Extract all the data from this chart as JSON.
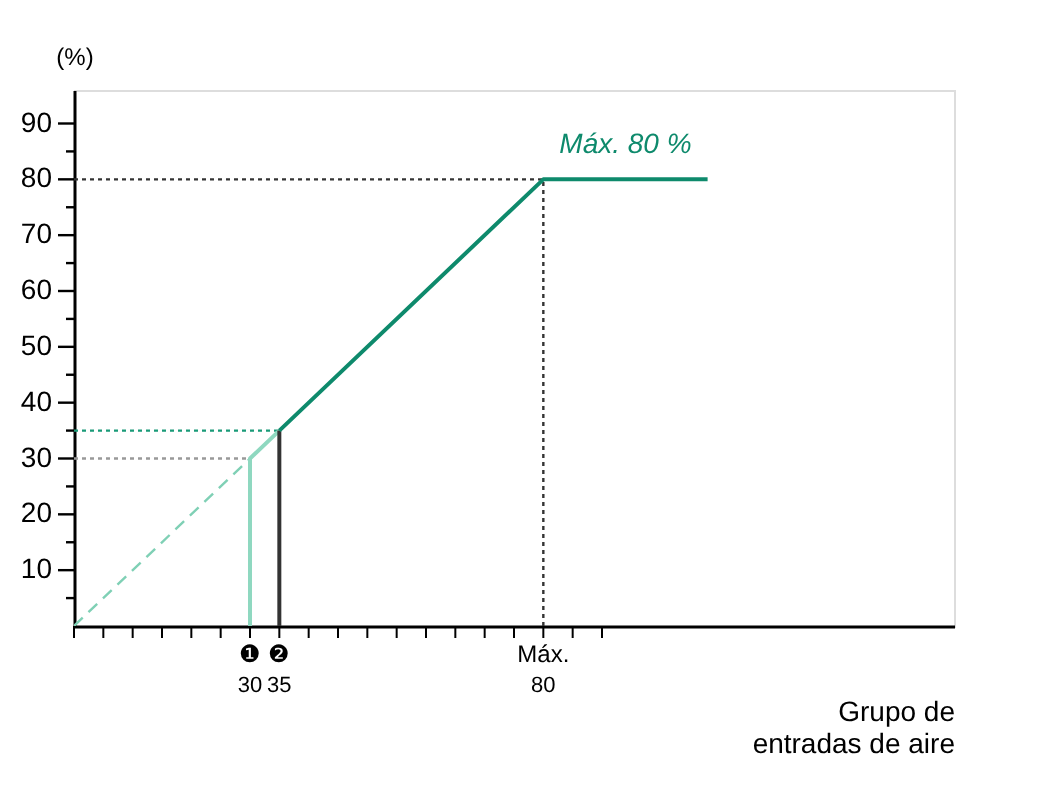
{
  "chart_data": {
    "type": "line",
    "ylabel": "(%)",
    "xlabel": "Grupo de\nentradas de aire",
    "xlim": [
      0,
      150
    ],
    "ylim": [
      0,
      96
    ],
    "xticks": [
      {
        "value": 0,
        "label": null
      },
      {
        "value": 5,
        "label": null
      },
      {
        "value": 10,
        "label": null
      },
      {
        "value": 15,
        "label": null
      },
      {
        "value": 20,
        "label": null
      },
      {
        "value": 25,
        "label": null
      },
      30,
      35,
      {
        "value": 40,
        "label": null
      },
      {
        "value": 45,
        "label": null
      },
      {
        "value": 50,
        "label": null
      },
      {
        "value": 55,
        "label": null
      },
      {
        "value": 60,
        "label": null
      },
      {
        "value": 65,
        "label": null
      },
      {
        "value": 70,
        "label": null
      },
      {
        "value": 75,
        "label": null
      },
      80,
      {
        "value": 85,
        "label": null
      },
      {
        "value": 90,
        "label": null
      }
    ],
    "yticks": [
      {
        "value": 5,
        "label": null
      },
      10,
      {
        "value": 15,
        "label": null
      },
      20,
      {
        "value": 25,
        "label": null
      },
      30,
      {
        "value": 35,
        "label": null
      },
      40,
      {
        "value": 45,
        "label": null
      },
      50,
      {
        "value": 55,
        "label": null
      },
      60,
      {
        "value": 65,
        "label": null
      },
      70,
      {
        "value": 75,
        "label": null
      },
      80,
      {
        "value": 85,
        "label": null
      },
      90
    ],
    "grid": false,
    "series": [
      {
        "x": [
          0,
          80
        ],
        "values": [
          80,
          80
        ],
        "color": "#333333",
        "line_style": "dotted"
      },
      {
        "x": [
          80,
          80
        ],
        "values": [
          0,
          80
        ],
        "color": "#333333",
        "line_style": "dotted"
      },
      {
        "x": [
          0,
          35
        ],
        "values": [
          35,
          35
        ],
        "color": "#1a9a78",
        "line_style": "dotted"
      },
      {
        "x": [
          0,
          30
        ],
        "values": [
          30,
          30
        ],
        "color": "#999999",
        "line_style": "dotted"
      },
      {
        "x": [
          0,
          35
        ],
        "values": [
          0,
          35
        ],
        "color": "#7fd0b5",
        "line_style": "dashed"
      },
      {
        "x": [
          35,
          30,
          30
        ],
        "values": [
          35,
          30,
          0
        ],
        "color": "#8fd8c0",
        "line_style": "solid"
      },
      {
        "x": [
          35,
          35
        ],
        "values": [
          0,
          35
        ],
        "color": "#333333",
        "line_style": "solid"
      },
      {
        "x": [
          35,
          80,
          108
        ],
        "values": [
          35,
          80,
          80
        ],
        "color": "#0e8a6c",
        "line_style": "solid"
      }
    ],
    "annotations": [
      {
        "text": "Máx. 80 %",
        "x": 94,
        "y": 80
      },
      "❶",
      "❷",
      "Máx."
    ]
  }
}
